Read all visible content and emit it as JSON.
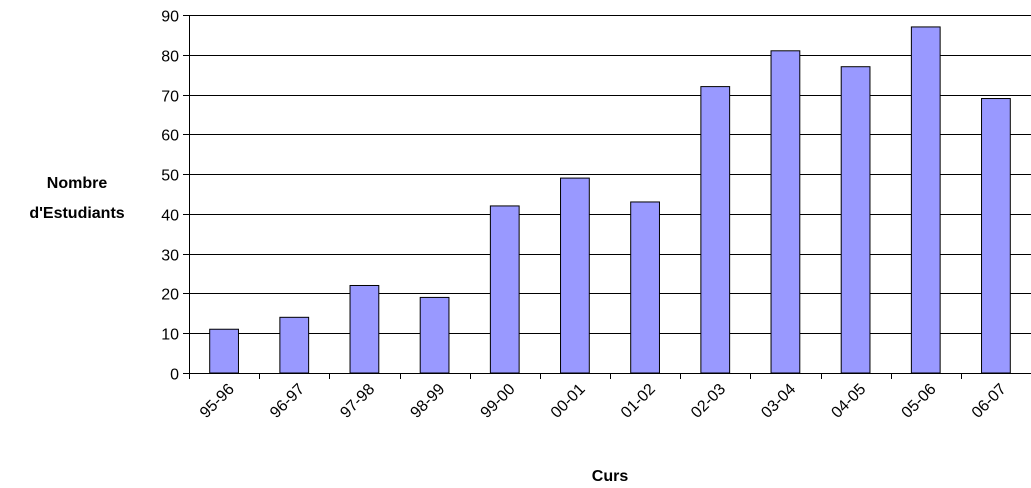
{
  "chart_data": {
    "type": "bar",
    "title": "",
    "xlabel": "Curs",
    "ylabel_lines": [
      "Nombre",
      "d'Estudiants"
    ],
    "categories": [
      "95-96",
      "96-97",
      "97-98",
      "98-99",
      "99-00",
      "00-01",
      "01-02",
      "02-03",
      "03-04",
      "04-05",
      "05-06",
      "06-07"
    ],
    "values": [
      11,
      14,
      22,
      19,
      42,
      49,
      43,
      72,
      81,
      77,
      87,
      69
    ],
    "ylim": [
      0,
      90
    ],
    "yticks": [
      0,
      10,
      20,
      30,
      40,
      50,
      60,
      70,
      80,
      90
    ],
    "grid": true,
    "legend": "none",
    "colors": {
      "bar_fill": "#9999ff",
      "bar_stroke": "#000000",
      "grid": "#000000"
    }
  }
}
